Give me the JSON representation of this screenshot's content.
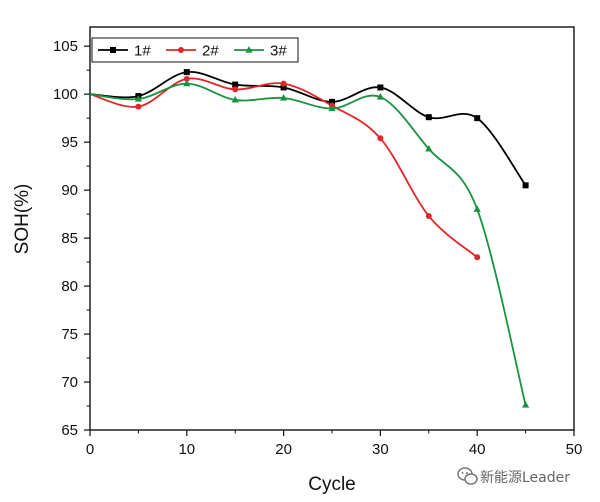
{
  "chart_data": {
    "type": "line",
    "xlabel": "Cycle",
    "ylabel": "SOH(%)",
    "xlim": [
      0,
      50
    ],
    "ylim": [
      65,
      107
    ],
    "x_ticks": [
      0,
      10,
      20,
      30,
      40,
      50
    ],
    "y_ticks": [
      65,
      70,
      75,
      80,
      85,
      90,
      95,
      100,
      105
    ],
    "grid": false,
    "smooth": true,
    "legend_position": "top-left",
    "series": [
      {
        "name": "1#",
        "color": "#000000",
        "marker": "square",
        "x": [
          0,
          5,
          10,
          15,
          20,
          25,
          30,
          35,
          40,
          45
        ],
        "y": [
          100.0,
          99.8,
          102.3,
          101.0,
          100.7,
          99.2,
          100.7,
          97.6,
          97.5,
          90.5
        ]
      },
      {
        "name": "2#",
        "color": "#e0262a",
        "marker": "circle",
        "x": [
          0,
          5,
          10,
          15,
          20,
          25,
          30,
          35,
          40
        ],
        "y": [
          100.0,
          98.7,
          101.6,
          100.5,
          101.1,
          98.8,
          95.4,
          87.3,
          83.0
        ]
      },
      {
        "name": "3#",
        "color": "#1a9341",
        "marker": "triangle",
        "x": [
          0,
          5,
          10,
          15,
          20,
          25,
          30,
          35,
          40,
          45
        ],
        "y": [
          100.0,
          99.5,
          101.1,
          99.4,
          99.6,
          98.5,
          99.7,
          94.3,
          88.0,
          67.6
        ]
      }
    ]
  },
  "watermark": {
    "text": "新能源Leader",
    "icon": "wechat-icon"
  }
}
